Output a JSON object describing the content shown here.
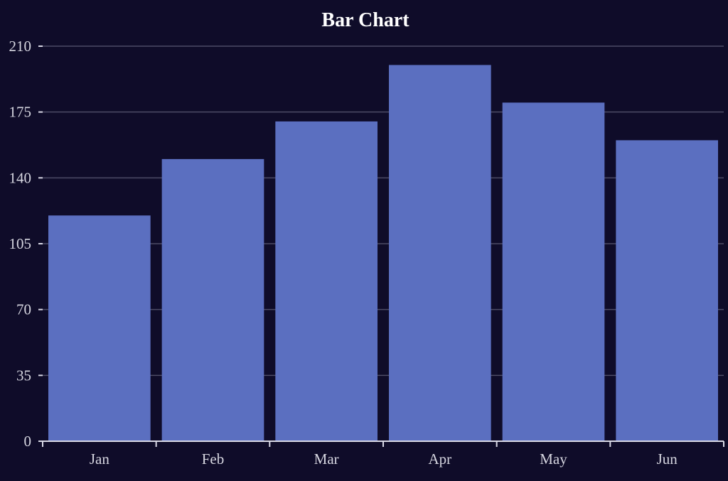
{
  "chart_data": {
    "type": "bar",
    "title": "Bar Chart",
    "categories": [
      "Jan",
      "Feb",
      "Mar",
      "Apr",
      "May",
      "Jun"
    ],
    "values": [
      120,
      150,
      170,
      200,
      180,
      160
    ],
    "xlabel": "",
    "ylabel": "",
    "ylim": [
      0,
      210
    ],
    "yticks": [
      0,
      35,
      70,
      105,
      140,
      175,
      210
    ],
    "ytick_labels": [
      "0",
      "35",
      "70",
      "105",
      "140",
      "175",
      "210"
    ],
    "grid": true,
    "colors": {
      "background": "#0f0c29",
      "bar": "#5b6fc0",
      "grid": "#4d4b66",
      "axis": "#d9d9e6",
      "text": "#d6d6e0",
      "title": "#ffffff"
    }
  }
}
